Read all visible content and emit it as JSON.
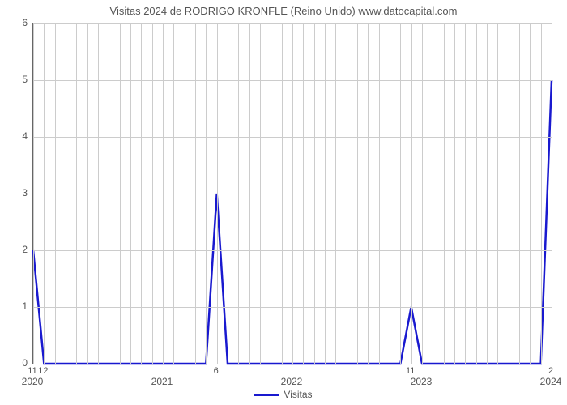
{
  "chart": {
    "type": "line",
    "title": "Visitas 2024 de RODRIGO KRONFLE (Reino Unido) www.datocapital.com",
    "title_fontsize": 13,
    "title_color": "#555555",
    "background_color": "#ffffff",
    "plot_border_color": "#666666",
    "grid_color": "#cccccc",
    "line_color": "#1919cf",
    "line_width": 2.5,
    "x_range": [
      0,
      48
    ],
    "y_range": [
      0,
      6
    ],
    "y_ticks": [
      0,
      1,
      2,
      3,
      4,
      5,
      6
    ],
    "x_major_ticks": [
      {
        "pos": 0,
        "label": "2020"
      },
      {
        "pos": 12,
        "label": "2021"
      },
      {
        "pos": 24,
        "label": "2022"
      },
      {
        "pos": 36,
        "label": "2023"
      },
      {
        "pos": 48,
        "label": "2024"
      }
    ],
    "data_labels": [
      {
        "x": 0,
        "label": "11"
      },
      {
        "x": 1,
        "label": "12"
      },
      {
        "x": 17,
        "label": "6"
      },
      {
        "x": 35,
        "label": "11"
      },
      {
        "x": 48,
        "label": "2"
      }
    ],
    "series": {
      "name": "Visitas",
      "points": [
        {
          "x": 0,
          "y": 2
        },
        {
          "x": 1,
          "y": 0
        },
        {
          "x": 2,
          "y": 0
        },
        {
          "x": 16,
          "y": 0
        },
        {
          "x": 17,
          "y": 3
        },
        {
          "x": 18,
          "y": 0
        },
        {
          "x": 34,
          "y": 0
        },
        {
          "x": 35,
          "y": 1
        },
        {
          "x": 36,
          "y": 0
        },
        {
          "x": 47,
          "y": 0
        },
        {
          "x": 48,
          "y": 5
        }
      ]
    },
    "legend_label": "Visitas",
    "axis_label_fontsize": 12,
    "axis_label_color": "#555555"
  }
}
